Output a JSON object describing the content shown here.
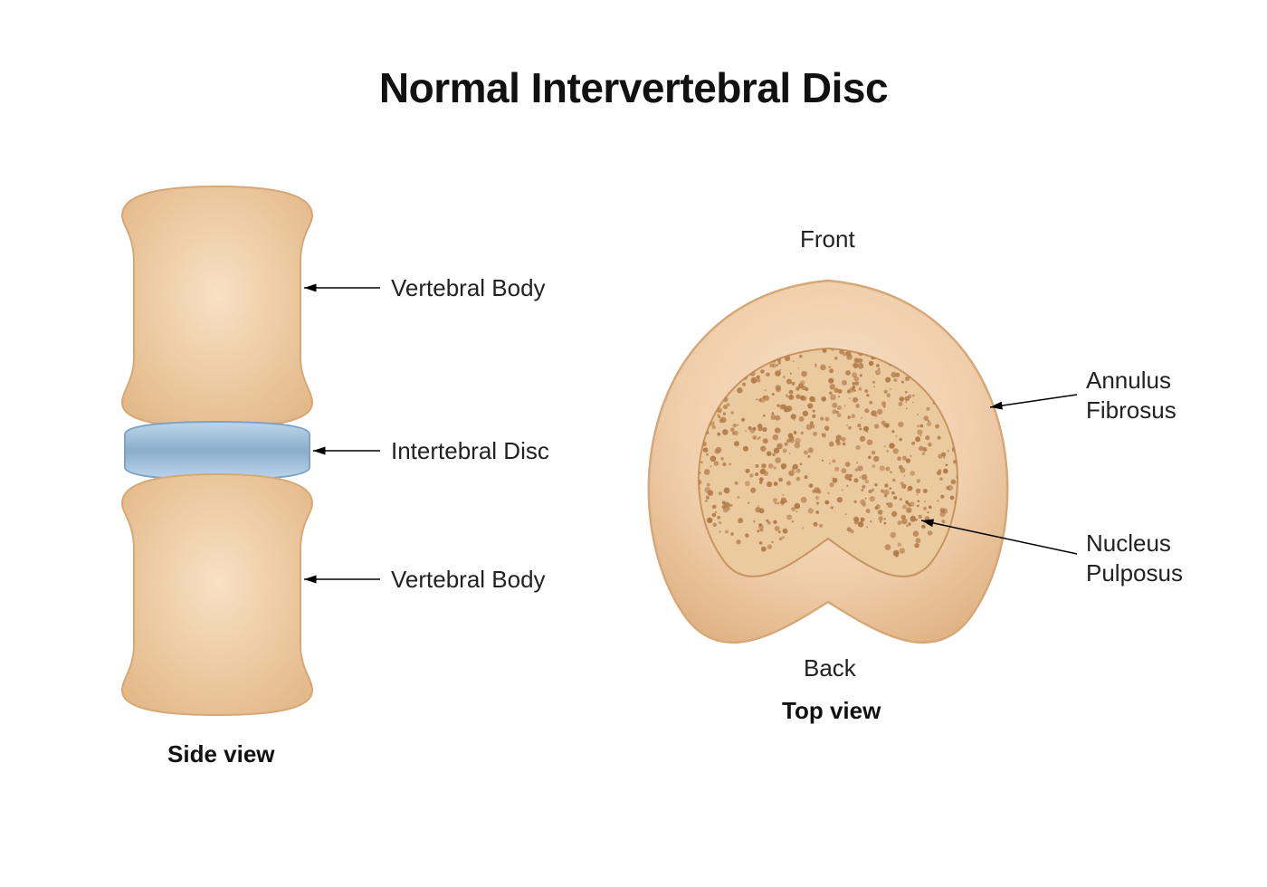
{
  "type": "infographic",
  "background_color": "#ffffff",
  "title": {
    "text": "Normal Intervertebral Disc",
    "fontsize": 46,
    "weight": 800,
    "color": "#111111"
  },
  "label_style": {
    "fontsize": 26,
    "color": "#222222",
    "arrow_color": "#000000"
  },
  "caption_style": {
    "fontsize": 26,
    "weight": 700,
    "color": "#111111"
  },
  "side_view": {
    "caption": "Side view",
    "vertebra": {
      "fill_light": "#f8e1c4",
      "fill_dark": "#e4b98a",
      "stroke": "#d7a877"
    },
    "disc": {
      "fill_light": "#bcd6ec",
      "fill_dark": "#8baecc",
      "stroke": "#7ea3c4"
    },
    "labels": {
      "vertebral_body_upper": "Vertebral Body",
      "intervertebral_disc": "Intertebral Disc",
      "vertebral_body_lower": "Vertebral Body"
    }
  },
  "top_view": {
    "caption": "Top view",
    "front_label": "Front",
    "back_label": "Back",
    "annulus": {
      "fill_light": "#f8e2c7",
      "fill_mid": "#f0ceab",
      "fill_dark": "#dfb081",
      "stroke": "#d6a878"
    },
    "nucleus": {
      "fill": "#eccaa0",
      "stroke": "#c79560",
      "speckle_color": "#b07c4a",
      "speckle_count": 650
    },
    "labels": {
      "annulus_fibrosus": "Annulus\nFibrosus",
      "nucleus_pulposus": "Nucleus\nPulposus"
    }
  }
}
